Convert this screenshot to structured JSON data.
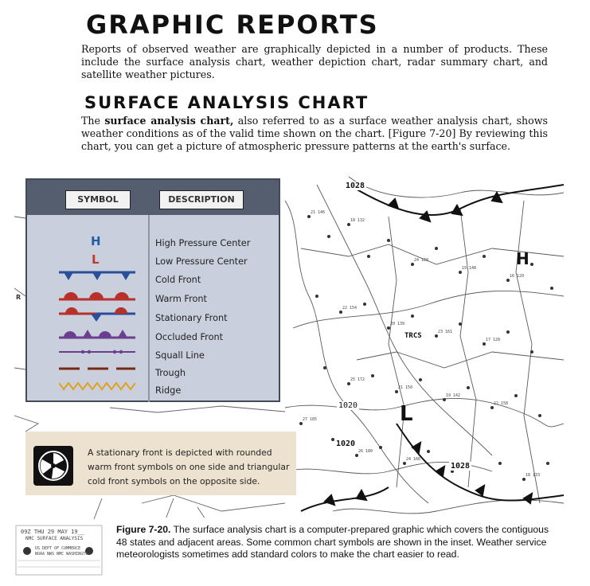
{
  "page": {
    "title": "GRAPHIC REPORTS",
    "intro": "Reports of observed weather are graphically depicted in a number of products. These include the surface analysis chart, weather depiction chart, radar summary chart, and satellite weather pictures.",
    "section_title": "SURFACE ANALYSIS CHART",
    "section_p_lead": "The ",
    "section_p_term": "surface analysis chart,",
    "section_p_rest": " also referred to as a surface weather analysis chart, shows weather conditions as of the valid time shown on the chart. [Figure 7-20] By reviewing this chart, you can get a picture of atmospheric pressure patterns at the earth's surface."
  },
  "legend": {
    "symbol_header": "SYMBOL",
    "description_header": "DESCRIPTION",
    "high_symbol": "H",
    "low_symbol": "L",
    "items": [
      "High Pressure Center",
      "Low Pressure Center",
      "Cold Front",
      "Warm Front",
      "Stationary Front",
      "Occluded Front",
      "Squall Line",
      "Trough",
      "Ridge"
    ],
    "colors": {
      "high": "#1f5fa8",
      "low": "#c0392b",
      "cold": "#2a4f9a",
      "warm": "#b8302a",
      "occluded": "#6b3f8f",
      "ridge": "#e0a020"
    }
  },
  "note": {
    "text": "A stationary front is depicted with rounded warm front symbols on one side and triangular cold front symbols on the opposite side."
  },
  "map_labels": {
    "isobar_1": "1028",
    "isobar_2": "1020",
    "isobar_3": "1020",
    "isobar_4": "1028",
    "station": "TRCS"
  },
  "stamp": {
    "line1": "09Z THU 29 MAY 19__",
    "line2": "NMC SURFACE ANALYSIS",
    "line3": "US DEPT OF COMMERCE",
    "line4": "NOAA NWS NMC WASHINGTON"
  },
  "caption": {
    "label": "Figure 7-20.",
    "text": " The surface analysis chart is a computer-prepared graphic which covers the contiguous 48 states and adjacent areas. Some common chart symbols are shown in the inset. Weather service meteorologists sometimes add standard colors to make the chart easier to read."
  }
}
